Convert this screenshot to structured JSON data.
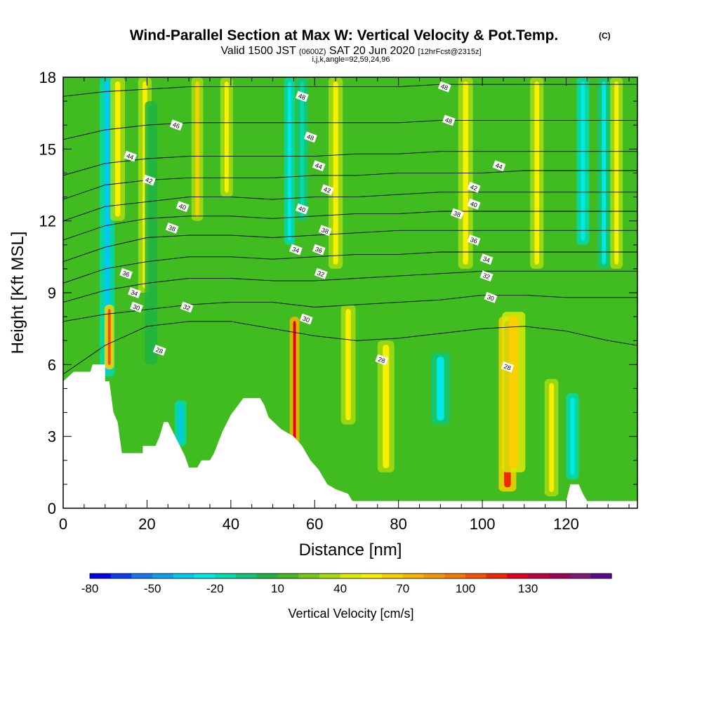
{
  "chart_data": {
    "type": "heatmap",
    "title": "Wind-Parallel Section at Max W: Vertical Velocity & Pot.Temp.",
    "title_suffix": "(C)",
    "subtitle_parts": [
      "Valid 1500 JST ",
      "(0600Z)",
      " SAT 20 Jun 2020 ",
      "[12hrFcst@2315z]"
    ],
    "meta_line": "i,j,k,angle=92,59,24,96",
    "xlabel": "Distance [nm]",
    "ylabel": "Height [Kft MSL]",
    "xlim": [
      0,
      137
    ],
    "ylim": [
      0,
      18
    ],
    "x_ticks": [
      0,
      20,
      40,
      60,
      80,
      100,
      120
    ],
    "y_ticks": [
      0,
      3,
      6,
      9,
      12,
      15,
      18
    ],
    "colorbar": {
      "label": "Vertical Velocity [cm/s]",
      "tick_labels": [
        "-80",
        "-50",
        "-20",
        "10",
        "40",
        "70",
        "100",
        "130"
      ],
      "levels": [
        -80,
        -70,
        -60,
        -50,
        -40,
        -30,
        -20,
        -10,
        0,
        10,
        20,
        30,
        40,
        50,
        60,
        70,
        80,
        90,
        100,
        110,
        120,
        130,
        140,
        150
      ],
      "colors": [
        "#0000f0",
        "#0a3cf0",
        "#1478f0",
        "#0aa0f0",
        "#00c8f0",
        "#00e8e8",
        "#00dcb0",
        "#10c878",
        "#20b440",
        "#40bc20",
        "#78cc10",
        "#a8dc10",
        "#d8ec08",
        "#f8f000",
        "#f8d000",
        "#f8b400",
        "#f89800",
        "#f87800",
        "#f85000",
        "#f02800",
        "#e00020",
        "#c0003c",
        "#a00058",
        "#801878",
        "#600890"
      ]
    },
    "vertical_velocity_columns": [
      {
        "x": 10.5,
        "w": 2.6,
        "top": 18,
        "bottom": 5.5,
        "value": -45
      },
      {
        "x": 11,
        "w": 1.3,
        "top": 8.5,
        "bottom": 5.8,
        "value": 95
      },
      {
        "x": 13,
        "w": 2.5,
        "top": 18,
        "bottom": 12,
        "value": 45
      },
      {
        "x": 19.5,
        "w": 2.2,
        "top": 18,
        "bottom": 9,
        "value": 40
      },
      {
        "x": 21,
        "w": 2.0,
        "top": 17,
        "bottom": 6,
        "value": -10
      },
      {
        "x": 28,
        "w": 1.8,
        "top": 4.5,
        "bottom": 2.6,
        "value": -45
      },
      {
        "x": 32,
        "w": 1.8,
        "top": 18,
        "bottom": 12,
        "value": 50
      },
      {
        "x": 39,
        "w": 2.0,
        "top": 18,
        "bottom": 13,
        "value": 40
      },
      {
        "x": 54,
        "w": 1.6,
        "top": 18,
        "bottom": 11,
        "value": -40
      },
      {
        "x": 55.2,
        "w": 1.3,
        "top": 8.0,
        "bottom": 2.5,
        "value": 115
      },
      {
        "x": 57,
        "w": 1.8,
        "top": 18,
        "bottom": 12,
        "value": -25
      },
      {
        "x": 65,
        "w": 2.4,
        "top": 18,
        "bottom": 10,
        "value": 45
      },
      {
        "x": 68,
        "w": 2.5,
        "top": 8.5,
        "bottom": 3.5,
        "value": 40
      },
      {
        "x": 77,
        "w": 3.0,
        "top": 7,
        "bottom": 1.5,
        "value": 40
      },
      {
        "x": 90,
        "w": 3.5,
        "top": 6.5,
        "bottom": 3.5,
        "value": -35
      },
      {
        "x": 96,
        "w": 2.5,
        "top": 18,
        "bottom": 10,
        "value": 40
      },
      {
        "x": 106,
        "w": 3.2,
        "top": 8,
        "bottom": 0.7,
        "value": 100
      },
      {
        "x": 107.5,
        "w": 4.5,
        "top": 8.2,
        "bottom": 1.5,
        "value": 55
      },
      {
        "x": 113,
        "w": 2.2,
        "top": 18,
        "bottom": 10,
        "value": 45
      },
      {
        "x": 116.5,
        "w": 2.3,
        "top": 5.4,
        "bottom": 0.5,
        "value": 40
      },
      {
        "x": 121.5,
        "w": 2.0,
        "top": 4.8,
        "bottom": 1.2,
        "value": -40
      },
      {
        "x": 124,
        "w": 2.0,
        "top": 18,
        "bottom": 11,
        "value": -40
      },
      {
        "x": 129,
        "w": 2.0,
        "top": 18,
        "bottom": 10,
        "value": -35
      },
      {
        "x": 132,
        "w": 2.0,
        "top": 18,
        "bottom": 10,
        "value": 40
      }
    ],
    "terrain": [
      [
        0,
        5.3
      ],
      [
        2.5,
        5.7
      ],
      [
        6.5,
        5.7
      ],
      [
        7,
        6.0
      ],
      [
        10,
        6.0
      ],
      [
        10,
        5.3
      ],
      [
        11,
        5.3
      ],
      [
        12,
        4.0
      ],
      [
        13,
        3.6
      ],
      [
        14,
        2.3
      ],
      [
        19,
        2.3
      ],
      [
        19,
        2.6
      ],
      [
        22,
        2.6
      ],
      [
        23,
        3.0
      ],
      [
        24,
        3.6
      ],
      [
        25,
        3.6
      ],
      [
        27,
        2.9
      ],
      [
        29,
        2.2
      ],
      [
        30,
        1.7
      ],
      [
        32,
        1.7
      ],
      [
        33,
        2.0
      ],
      [
        35,
        2.0
      ],
      [
        36,
        2.3
      ],
      [
        38,
        3.2
      ],
      [
        40,
        3.9
      ],
      [
        43,
        4.6
      ],
      [
        47,
        4.6
      ],
      [
        48,
        4.3
      ],
      [
        49,
        3.8
      ],
      [
        52,
        3.3
      ],
      [
        55,
        3.0
      ],
      [
        57,
        2.6
      ],
      [
        59,
        2.0
      ],
      [
        61,
        1.6
      ],
      [
        63,
        1.0
      ],
      [
        65,
        0.8
      ],
      [
        68,
        0.6
      ],
      [
        69,
        0.3
      ],
      [
        80,
        0.3
      ],
      [
        93,
        0.3
      ],
      [
        100,
        0.3
      ],
      [
        120,
        0.3
      ],
      [
        121,
        1.0
      ],
      [
        123,
        1.0
      ],
      [
        124,
        0.6
      ],
      [
        125,
        0.3
      ],
      [
        137,
        0.3
      ]
    ],
    "isentropes": [
      {
        "label": "28",
        "pts": [
          [
            0,
            5.6
          ],
          [
            10,
            6.8
          ],
          [
            20,
            7.6
          ],
          [
            30,
            7.8
          ],
          [
            40,
            7.8
          ],
          [
            50,
            7.5
          ],
          [
            60,
            7.2
          ],
          [
            70,
            7.0
          ],
          [
            80,
            7.1
          ],
          [
            90,
            7.3
          ],
          [
            100,
            7.5
          ],
          [
            110,
            7.6
          ],
          [
            120,
            7.4
          ],
          [
            130,
            7.0
          ],
          [
            137,
            6.8
          ]
        ]
      },
      {
        "label": "30",
        "pts": [
          [
            0,
            7.8
          ],
          [
            10,
            8.1
          ],
          [
            20,
            8.3
          ],
          [
            30,
            8.5
          ],
          [
            40,
            8.6
          ],
          [
            50,
            8.6
          ],
          [
            60,
            8.4
          ],
          [
            70,
            8.5
          ],
          [
            80,
            8.6
          ],
          [
            90,
            8.7
          ],
          [
            100,
            8.9
          ],
          [
            110,
            8.9
          ],
          [
            120,
            8.8
          ],
          [
            130,
            8.8
          ],
          [
            137,
            8.8
          ]
        ]
      },
      {
        "label": "32",
        "pts": [
          [
            0,
            8.6
          ],
          [
            10,
            9.1
          ],
          [
            20,
            9.4
          ],
          [
            30,
            9.6
          ],
          [
            40,
            9.6
          ],
          [
            50,
            9.5
          ],
          [
            60,
            9.5
          ],
          [
            70,
            9.6
          ],
          [
            80,
            9.7
          ],
          [
            90,
            9.8
          ],
          [
            100,
            9.9
          ],
          [
            110,
            9.9
          ],
          [
            120,
            9.9
          ],
          [
            130,
            9.9
          ],
          [
            137,
            9.9
          ]
        ]
      },
      {
        "label": "34",
        "pts": [
          [
            0,
            9.4
          ],
          [
            10,
            10.0
          ],
          [
            20,
            10.3
          ],
          [
            30,
            10.5
          ],
          [
            40,
            10.5
          ],
          [
            50,
            10.4
          ],
          [
            60,
            10.5
          ],
          [
            70,
            10.6
          ],
          [
            80,
            10.6
          ],
          [
            90,
            10.7
          ],
          [
            100,
            10.7
          ],
          [
            110,
            10.7
          ],
          [
            120,
            10.7
          ],
          [
            130,
            10.7
          ],
          [
            137,
            10.7
          ]
        ]
      },
      {
        "label": "36",
        "pts": [
          [
            0,
            10.3
          ],
          [
            10,
            10.9
          ],
          [
            20,
            11.3
          ],
          [
            30,
            11.4
          ],
          [
            40,
            11.4
          ],
          [
            50,
            11.3
          ],
          [
            60,
            11.4
          ],
          [
            70,
            11.5
          ],
          [
            80,
            11.6
          ],
          [
            90,
            11.6
          ],
          [
            100,
            11.6
          ],
          [
            110,
            11.6
          ],
          [
            120,
            11.6
          ],
          [
            130,
            11.6
          ],
          [
            137,
            11.6
          ]
        ]
      },
      {
        "label": "38",
        "pts": [
          [
            0,
            11.2
          ],
          [
            10,
            11.8
          ],
          [
            20,
            12.1
          ],
          [
            30,
            12.2
          ],
          [
            40,
            12.2
          ],
          [
            50,
            12.1
          ],
          [
            60,
            12.2
          ],
          [
            70,
            12.3
          ],
          [
            80,
            12.3
          ],
          [
            90,
            12.4
          ],
          [
            100,
            12.4
          ],
          [
            110,
            12.4
          ],
          [
            120,
            12.4
          ],
          [
            130,
            12.4
          ],
          [
            137,
            12.4
          ]
        ]
      },
      {
        "label": "40",
        "pts": [
          [
            0,
            12.0
          ],
          [
            10,
            12.6
          ],
          [
            20,
            12.8
          ],
          [
            30,
            13.0
          ],
          [
            40,
            13.0
          ],
          [
            50,
            12.9
          ],
          [
            60,
            13.0
          ],
          [
            70,
            13.0
          ],
          [
            80,
            13.1
          ],
          [
            90,
            13.2
          ],
          [
            100,
            13.2
          ],
          [
            110,
            13.2
          ],
          [
            120,
            13.2
          ],
          [
            130,
            13.2
          ],
          [
            137,
            13.2
          ]
        ]
      },
      {
        "label": "42",
        "pts": [
          [
            0,
            12.9
          ],
          [
            10,
            13.5
          ],
          [
            20,
            13.7
          ],
          [
            30,
            13.8
          ],
          [
            40,
            13.8
          ],
          [
            50,
            13.8
          ],
          [
            60,
            13.9
          ],
          [
            70,
            13.9
          ],
          [
            80,
            14.0
          ],
          [
            90,
            14.0
          ],
          [
            100,
            14.0
          ],
          [
            110,
            14.1
          ],
          [
            120,
            14.1
          ],
          [
            130,
            14.1
          ],
          [
            137,
            14.1
          ]
        ]
      },
      {
        "label": "44",
        "pts": [
          [
            0,
            13.9
          ],
          [
            10,
            14.4
          ],
          [
            20,
            14.6
          ],
          [
            30,
            14.7
          ],
          [
            40,
            14.7
          ],
          [
            50,
            14.7
          ],
          [
            60,
            14.7
          ],
          [
            70,
            14.8
          ],
          [
            80,
            14.8
          ],
          [
            90,
            14.9
          ],
          [
            100,
            14.9
          ],
          [
            110,
            14.9
          ],
          [
            120,
            14.9
          ],
          [
            130,
            14.9
          ],
          [
            137,
            14.9
          ]
        ]
      },
      {
        "label": "46",
        "pts": [
          [
            0,
            15.4
          ],
          [
            10,
            15.8
          ],
          [
            20,
            16.0
          ],
          [
            30,
            16.1
          ],
          [
            40,
            16.1
          ],
          [
            50,
            16.1
          ],
          [
            60,
            16.1
          ],
          [
            70,
            16.1
          ],
          [
            80,
            16.1
          ],
          [
            90,
            16.2
          ],
          [
            100,
            16.2
          ],
          [
            110,
            16.2
          ],
          [
            120,
            16.2
          ],
          [
            130,
            16.2
          ],
          [
            137,
            16.2
          ]
        ]
      },
      {
        "label": "48",
        "pts": [
          [
            0,
            17.2
          ],
          [
            10,
            17.4
          ],
          [
            20,
            17.5
          ],
          [
            30,
            17.6
          ],
          [
            40,
            17.6
          ],
          [
            50,
            17.6
          ],
          [
            60,
            17.6
          ],
          [
            70,
            17.6
          ],
          [
            80,
            17.6
          ],
          [
            90,
            17.7
          ],
          [
            100,
            17.7
          ],
          [
            110,
            17.7
          ],
          [
            120,
            17.7
          ],
          [
            130,
            17.7
          ],
          [
            137,
            17.7
          ]
        ]
      }
    ],
    "contour_labels": [
      {
        "text": "48",
        "x": 91,
        "y": 17.6
      },
      {
        "text": "48",
        "x": 57,
        "y": 17.2
      },
      {
        "text": "48",
        "x": 92,
        "y": 16.2
      },
      {
        "text": "48",
        "x": 59,
        "y": 15.5
      },
      {
        "text": "46",
        "x": 27,
        "y": 16.0
      },
      {
        "text": "44",
        "x": 16,
        "y": 14.7
      },
      {
        "text": "44",
        "x": 61,
        "y": 14.3
      },
      {
        "text": "44",
        "x": 104,
        "y": 14.3
      },
      {
        "text": "42",
        "x": 20.5,
        "y": 13.7
      },
      {
        "text": "42",
        "x": 63,
        "y": 13.3
      },
      {
        "text": "42",
        "x": 98,
        "y": 13.4
      },
      {
        "text": "40",
        "x": 28.5,
        "y": 12.6
      },
      {
        "text": "40",
        "x": 57,
        "y": 12.5
      },
      {
        "text": "40",
        "x": 98,
        "y": 12.7
      },
      {
        "text": "38",
        "x": 26,
        "y": 11.7
      },
      {
        "text": "38",
        "x": 62.5,
        "y": 11.6
      },
      {
        "text": "38",
        "x": 94,
        "y": 12.3
      },
      {
        "text": "36",
        "x": 15,
        "y": 9.8
      },
      {
        "text": "36",
        "x": 61,
        "y": 10.8
      },
      {
        "text": "36",
        "x": 98,
        "y": 11.2
      },
      {
        "text": "34",
        "x": 55.5,
        "y": 10.8
      },
      {
        "text": "34",
        "x": 17,
        "y": 9.0
      },
      {
        "text": "34",
        "x": 101,
        "y": 10.4
      },
      {
        "text": "32",
        "x": 61.5,
        "y": 9.8
      },
      {
        "text": "32",
        "x": 101,
        "y": 9.7
      },
      {
        "text": "32",
        "x": 29.5,
        "y": 8.4
      },
      {
        "text": "30",
        "x": 17.5,
        "y": 8.4
      },
      {
        "text": "30",
        "x": 102,
        "y": 8.8
      },
      {
        "text": "30",
        "x": 58,
        "y": 7.9
      },
      {
        "text": "28",
        "x": 23,
        "y": 6.6
      },
      {
        "text": "28",
        "x": 76,
        "y": 6.2
      },
      {
        "text": "28",
        "x": 106,
        "y": 5.9
      }
    ]
  }
}
